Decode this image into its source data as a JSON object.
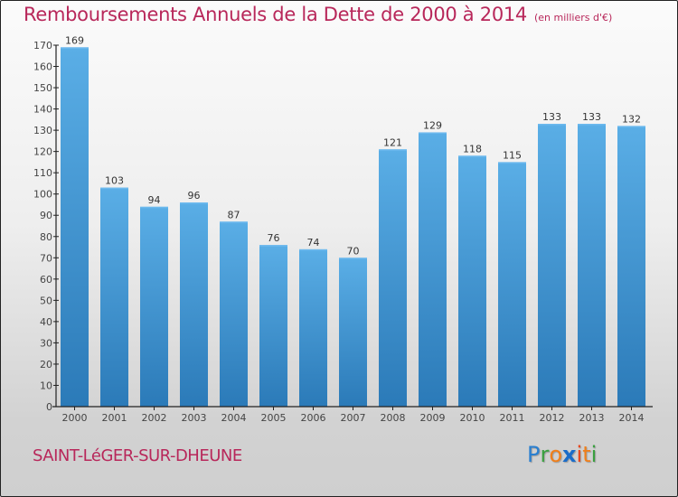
{
  "header": {
    "title": "Remboursements Annuels de la Dette de 2000 à 2014",
    "subtitle": "(en milliers d'€)"
  },
  "footer": {
    "commune": "SAINT-LéGER-SUR-DHEUNE",
    "logo_letters": [
      {
        "char": "P",
        "color": "#2a7fd0"
      },
      {
        "char": "r",
        "color": "#3aa040"
      },
      {
        "char": "o",
        "color": "#f07f1a"
      },
      {
        "char": "x",
        "color": "#1a6cc9"
      },
      {
        "char": "i",
        "color": "#e8461c"
      },
      {
        "char": "t",
        "color": "#f07f1a"
      },
      {
        "char": "i",
        "color": "#3aa040"
      }
    ]
  },
  "colors": {
    "title": "#b8275a",
    "bar_top": "#5aaee6",
    "bar_bottom": "#2b7ab8"
  },
  "chart_data": {
    "type": "bar",
    "title": "Remboursements Annuels de la Dette de 2000 à 2014",
    "subtitle": "(en milliers d'€)",
    "xlabel": "",
    "ylabel": "",
    "categories": [
      "2000",
      "2001",
      "2002",
      "2003",
      "2004",
      "2005",
      "2006",
      "2007",
      "2008",
      "2009",
      "2010",
      "2011",
      "2012",
      "2013",
      "2014"
    ],
    "values": [
      169,
      103,
      94,
      96,
      87,
      76,
      74,
      70,
      121,
      129,
      118,
      115,
      133,
      133,
      132
    ],
    "ylim": [
      0,
      170
    ],
    "yticks": [
      0,
      10,
      20,
      30,
      40,
      50,
      60,
      70,
      80,
      90,
      100,
      110,
      120,
      130,
      140,
      150,
      160,
      170
    ],
    "grid": false,
    "legend": "none",
    "data_labels": true
  }
}
